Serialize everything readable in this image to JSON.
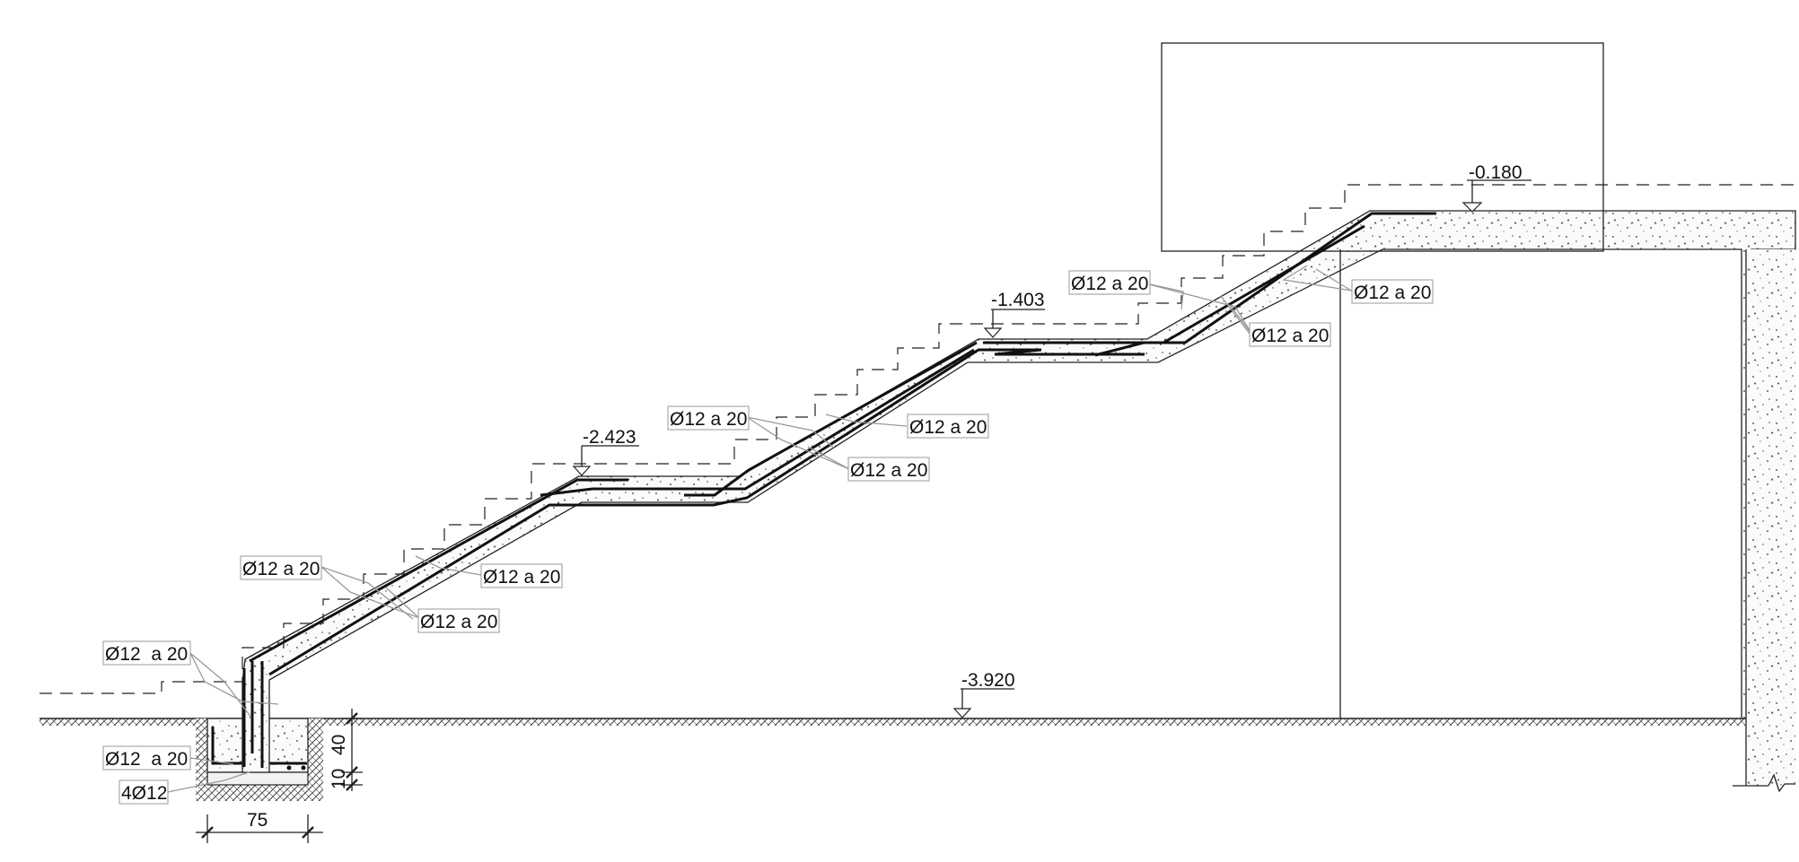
{
  "levels": {
    "top": "-0.180",
    "landing_upper": "-1.403",
    "landing_lower": "-2.423",
    "floor": "-3.920"
  },
  "rebar_labels": {
    "upper_left": "Ø12 a 20",
    "upper_right_a": "Ø12 a 20",
    "upper_right_b": "Ø12 a 20",
    "middle_left": "Ø12 a 20",
    "middle_right_a": "Ø12 a 20",
    "middle_right_b": "Ø12 a 20",
    "lower_left": "Ø12 a 20",
    "lower_right_a": "Ø12 a 20",
    "lower_right_b": "Ø12 a 20",
    "base_vertical": "Ø12  a 20",
    "footing_stirrup": "Ø12  a 20",
    "footing_bars": "4Ø12"
  },
  "dimensions": {
    "footing_width": "75",
    "footing_height": "40",
    "footing_base": "10"
  }
}
